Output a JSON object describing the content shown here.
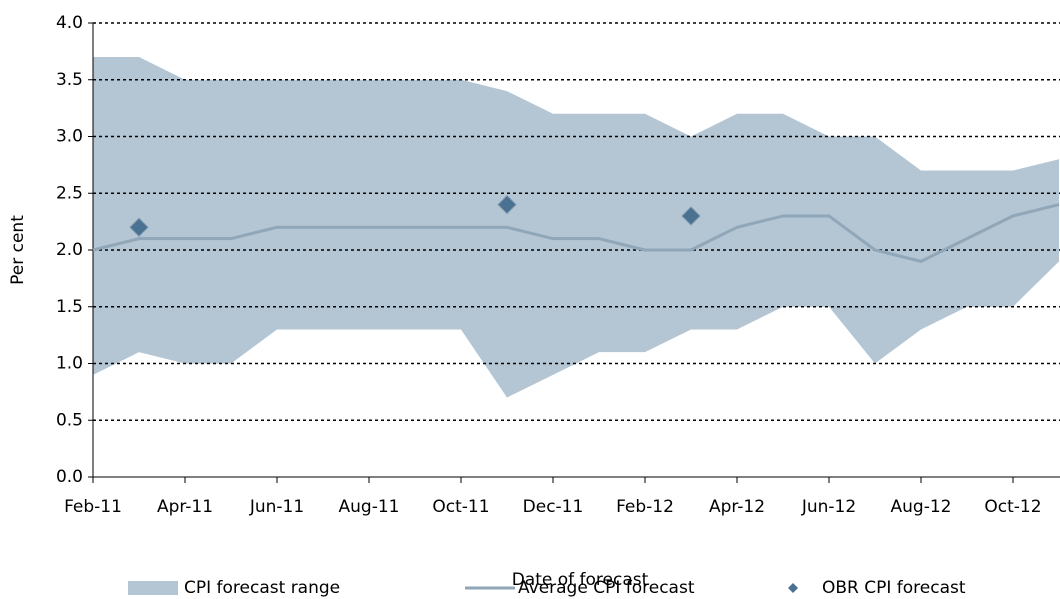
{
  "chart_data": {
    "type": "line",
    "xlabel": "Date of forecast",
    "ylabel": "Per cent",
    "categories": [
      "Feb-11",
      null,
      "Apr-11",
      null,
      "Jun-11",
      null,
      "Aug-11",
      null,
      "Oct-11",
      null,
      "Dec-11",
      null,
      "Feb-12",
      null,
      "Apr-12",
      null,
      "Jun-12",
      null,
      "Aug-12",
      null,
      "Oct-12",
      null
    ],
    "series": [
      {
        "name": "CPI forecast range",
        "color": "#b4c5d3",
        "upper": [
          3.7,
          3.7,
          3.5,
          3.5,
          3.5,
          3.5,
          3.5,
          3.5,
          3.5,
          3.4,
          3.2,
          3.2,
          3.2,
          3.0,
          3.2,
          3.2,
          3.0,
          3.0,
          2.7,
          2.7,
          2.7,
          2.8
        ],
        "lower": [
          0.9,
          1.1,
          1.0,
          1.0,
          1.3,
          1.3,
          1.3,
          1.3,
          1.3,
          0.7,
          0.9,
          1.1,
          1.1,
          1.3,
          1.3,
          1.5,
          1.5,
          1.0,
          1.3,
          1.5,
          1.5,
          1.9
        ]
      },
      {
        "name": "Average CPI forecast",
        "color": "#8fa7b9",
        "values": [
          2.0,
          2.1,
          2.1,
          2.1,
          2.2,
          2.2,
          2.2,
          2.2,
          2.2,
          2.2,
          2.1,
          2.1,
          2.0,
          2.0,
          2.2,
          2.3,
          2.3,
          2.0,
          1.9,
          2.1,
          2.3,
          2.4
        ]
      },
      {
        "name": "OBR CPI forecast",
        "color": "#4a7191",
        "values": [
          null,
          2.2,
          null,
          null,
          null,
          null,
          null,
          null,
          null,
          2.4,
          null,
          null,
          null,
          2.3,
          null,
          null,
          null,
          null,
          null,
          null,
          null,
          null
        ]
      }
    ],
    "ylim": [
      0,
      4
    ],
    "yticks": [
      {
        "value": 0,
        "label": "0.0"
      },
      {
        "value": 0.5,
        "label": "0.5"
      },
      {
        "value": 1,
        "label": "1.0"
      },
      {
        "value": 1.5,
        "label": "1.5"
      },
      {
        "value": 2,
        "label": "2.0"
      },
      {
        "value": 2.5,
        "label": "2.5"
      },
      {
        "value": 3,
        "label": "3.0"
      },
      {
        "value": 3.5,
        "label": "3.5"
      },
      {
        "value": 4,
        "label": "4.0"
      }
    ],
    "grid": true
  }
}
